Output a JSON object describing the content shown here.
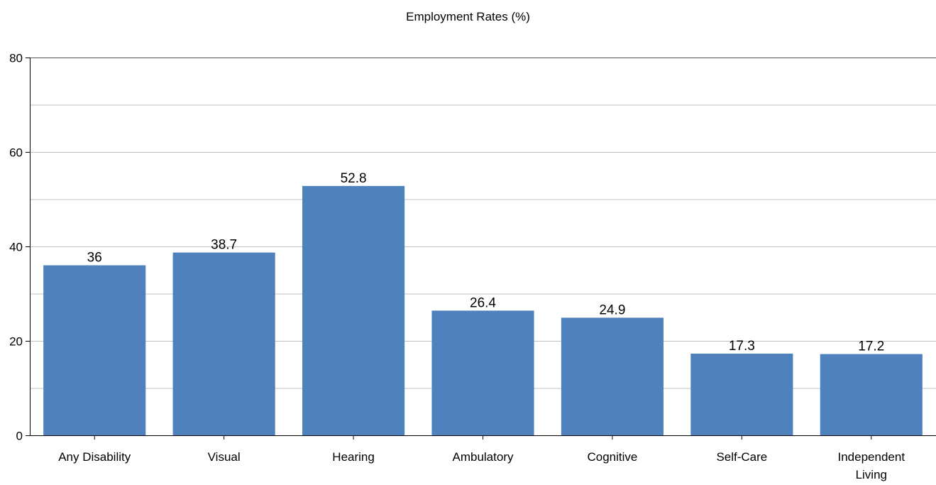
{
  "chart_data": {
    "type": "bar",
    "title": "Employment Rates (%)",
    "categories": [
      [
        "Any Disability"
      ],
      [
        "Visual"
      ],
      [
        "Hearing"
      ],
      [
        "Ambulatory"
      ],
      [
        "Cognitive"
      ],
      [
        "Self-Care"
      ],
      [
        "Independent",
        "Living"
      ]
    ],
    "values": [
      36,
      38.7,
      52.8,
      26.4,
      24.9,
      17.3,
      17.2
    ],
    "value_labels": [
      "36",
      "38.7",
      "52.8",
      "26.4",
      "24.9",
      "17.3",
      "17.2"
    ],
    "ylim": [
      0,
      80
    ],
    "y_ticks": [
      0,
      20,
      40,
      60,
      80
    ],
    "minor_gridlines": [
      10,
      30,
      50,
      70
    ],
    "grid": true,
    "bar_color": "#4f81bd",
    "gridline_color": "#c0c0c0",
    "axis_color": "#000000"
  }
}
